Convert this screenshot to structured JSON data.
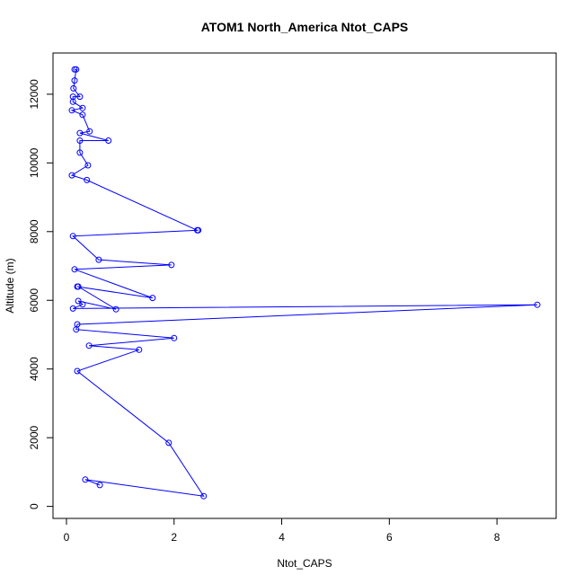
{
  "chart_data": {
    "type": "scatter",
    "title": "ATOM1 North_America Ntot_CAPS",
    "xlabel": "Ntot_CAPS",
    "ylabel": "Altitude (m)",
    "xlim": [
      -0.25,
      9.1
    ],
    "ylim": [
      -350,
      13200
    ],
    "x_ticks": [
      0,
      2,
      4,
      6,
      8
    ],
    "y_ticks": [
      0,
      2000,
      4000,
      6000,
      8000,
      10000,
      12000
    ],
    "grid": false,
    "color": "#0000ff",
    "series": [
      {
        "style": "line-and-points",
        "points": [
          [
            0.15,
            12720
          ],
          [
            0.18,
            12720
          ],
          [
            0.15,
            12400
          ],
          [
            0.13,
            12170
          ],
          [
            0.25,
            11930
          ],
          [
            0.12,
            11930
          ],
          [
            0.12,
            11780
          ],
          [
            0.3,
            11600
          ],
          [
            0.1,
            11530
          ],
          [
            0.3,
            11400
          ],
          [
            0.43,
            10920
          ],
          [
            0.25,
            10870
          ],
          [
            0.78,
            10650
          ],
          [
            0.25,
            10650
          ],
          [
            0.25,
            10300
          ],
          [
            0.4,
            9930
          ],
          [
            0.1,
            9640
          ],
          [
            0.38,
            9500
          ],
          [
            2.43,
            8040
          ],
          [
            2.45,
            8040
          ],
          [
            0.12,
            7870
          ],
          [
            0.6,
            7180
          ],
          [
            1.95,
            7030
          ],
          [
            0.15,
            6900
          ],
          [
            1.6,
            6070
          ],
          [
            0.2,
            6400
          ],
          [
            0.22,
            6400
          ],
          [
            0.92,
            5740
          ],
          [
            0.22,
            5980
          ],
          [
            0.3,
            5880
          ],
          [
            0.12,
            5760
          ],
          [
            8.75,
            5870
          ],
          [
            0.2,
            5300
          ],
          [
            0.18,
            5150
          ],
          [
            2.0,
            4900
          ],
          [
            0.42,
            4680
          ],
          [
            1.35,
            4560
          ],
          [
            0.2,
            3940
          ],
          [
            1.9,
            1850
          ],
          [
            2.55,
            300
          ],
          [
            0.35,
            780
          ],
          [
            0.62,
            620
          ]
        ]
      }
    ]
  }
}
